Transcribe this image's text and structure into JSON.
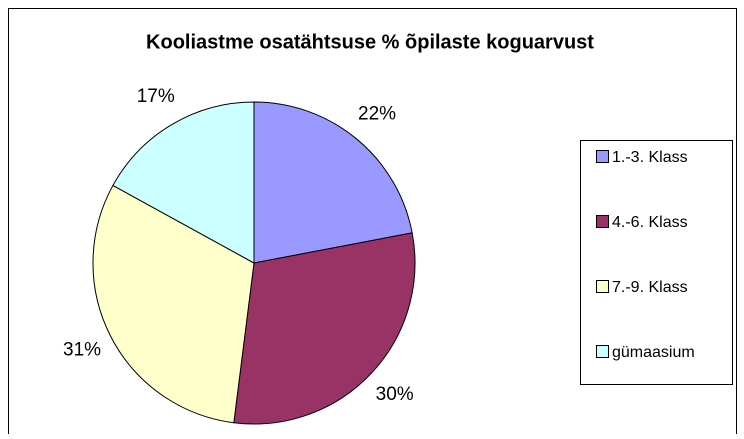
{
  "chart_data": {
    "type": "pie",
    "title": "Kooliastme osatähtsuse % õpilaste koguarvust",
    "categories": [
      "1.-3. Klass",
      "4.-6. Klass",
      "7.-9. Klass",
      "gümaasium"
    ],
    "values": [
      22,
      30,
      31,
      17
    ],
    "value_labels": [
      "22%",
      "30%",
      "31%",
      "17%"
    ],
    "colors": [
      "#9999ff",
      "#993366",
      "#ffffcc",
      "#ccffff"
    ],
    "legend": "right"
  }
}
